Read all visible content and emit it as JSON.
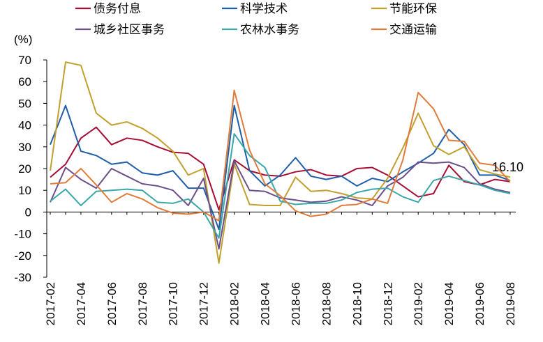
{
  "chart_data": {
    "type": "line",
    "y_unit_label": "(%)",
    "ylim": [
      -30,
      70
    ],
    "yticks": [
      -30,
      -20,
      -10,
      0,
      10,
      20,
      30,
      40,
      50,
      60,
      70
    ],
    "x": [
      "2017-02",
      "2017-03",
      "2017-04",
      "2017-05",
      "2017-06",
      "2017-07",
      "2017-08",
      "2017-09",
      "2017-10",
      "2017-11",
      "2017-12",
      "2018-01",
      "2018-02",
      "2018-03",
      "2018-04",
      "2018-05",
      "2018-06",
      "2018-07",
      "2018-08",
      "2018-09",
      "2018-10",
      "2018-11",
      "2018-12",
      "2019-01",
      "2019-02",
      "2019-03",
      "2019-04",
      "2019-05",
      "2019-06",
      "2019-07",
      "2019-08"
    ],
    "xtick_labels": [
      "2017-02",
      "2017-04",
      "2017-06",
      "2017-08",
      "2017-10",
      "2017-12",
      "2018-02",
      "2018-04",
      "2018-06",
      "2018-08",
      "2018-10",
      "2018-12",
      "2019-02",
      "2019-04",
      "2019-06",
      "2019-08"
    ],
    "grid": false,
    "legend_position": "top",
    "annotation": "16.10",
    "series": [
      {
        "name": "债务付息",
        "color": "#a50d33",
        "values": [
          16,
          22,
          34,
          39,
          31,
          34,
          33,
          30,
          27.5,
          27,
          22,
          1,
          24,
          19,
          17,
          16.5,
          18.5,
          19.5,
          17,
          16.5,
          20,
          20.5,
          17,
          12,
          7,
          8.5,
          21.5,
          14,
          12.5,
          15,
          14
        ]
      },
      {
        "name": "科学技术",
        "color": "#1f5ea8",
        "values": [
          31,
          49,
          28,
          26,
          22,
          23,
          18,
          17,
          19,
          11,
          11,
          -8,
          49,
          19,
          12,
          17,
          25,
          16.5,
          15,
          16.5,
          12,
          15.5,
          14,
          18.5,
          22.5,
          27,
          38,
          31,
          17,
          17,
          14.5
        ]
      },
      {
        "name": "节能环保",
        "color": "#c2a02e",
        "values": [
          19,
          69,
          67.5,
          45.5,
          40,
          41.5,
          38.5,
          34,
          28,
          17,
          20,
          -23.5,
          22,
          3.5,
          3,
          3,
          16,
          9.5,
          10,
          8.5,
          6.5,
          6,
          15.5,
          29.5,
          45.5,
          30.5,
          26.5,
          30,
          19.5,
          17.5,
          16.1
        ]
      },
      {
        "name": "城乡社区事务",
        "color": "#6b4f8c",
        "values": [
          4.5,
          20.5,
          15,
          11,
          20,
          16.5,
          13,
          12,
          10,
          3,
          15.5,
          -17,
          23.5,
          10,
          9.5,
          6.5,
          5.5,
          4.5,
          5,
          7,
          5.5,
          3,
          12,
          16,
          23,
          22.5,
          23,
          20.5,
          13,
          10.5,
          9
        ]
      },
      {
        "name": "农林水事务",
        "color": "#3ba7a8",
        "values": [
          5,
          10.5,
          3,
          9.5,
          10,
          10.5,
          10,
          4.5,
          4,
          6,
          0,
          -12,
          36,
          26,
          20.5,
          5,
          3.5,
          4,
          4,
          5.5,
          9,
          10.5,
          11,
          7,
          4.5,
          14.5,
          16.5,
          14.5,
          12.5,
          10,
          8.5
        ]
      },
      {
        "name": "交通运输",
        "color": "#e07b39",
        "values": [
          13,
          13.5,
          20,
          12.5,
          4.5,
          8.5,
          6,
          2,
          -0.5,
          -1,
          0,
          -4,
          56,
          28.5,
          13,
          7.5,
          0.5,
          -2,
          -1,
          3,
          3.5,
          6,
          4,
          24,
          55,
          47.5,
          33,
          32.5,
          22.5,
          21.5,
          14
        ]
      }
    ]
  }
}
